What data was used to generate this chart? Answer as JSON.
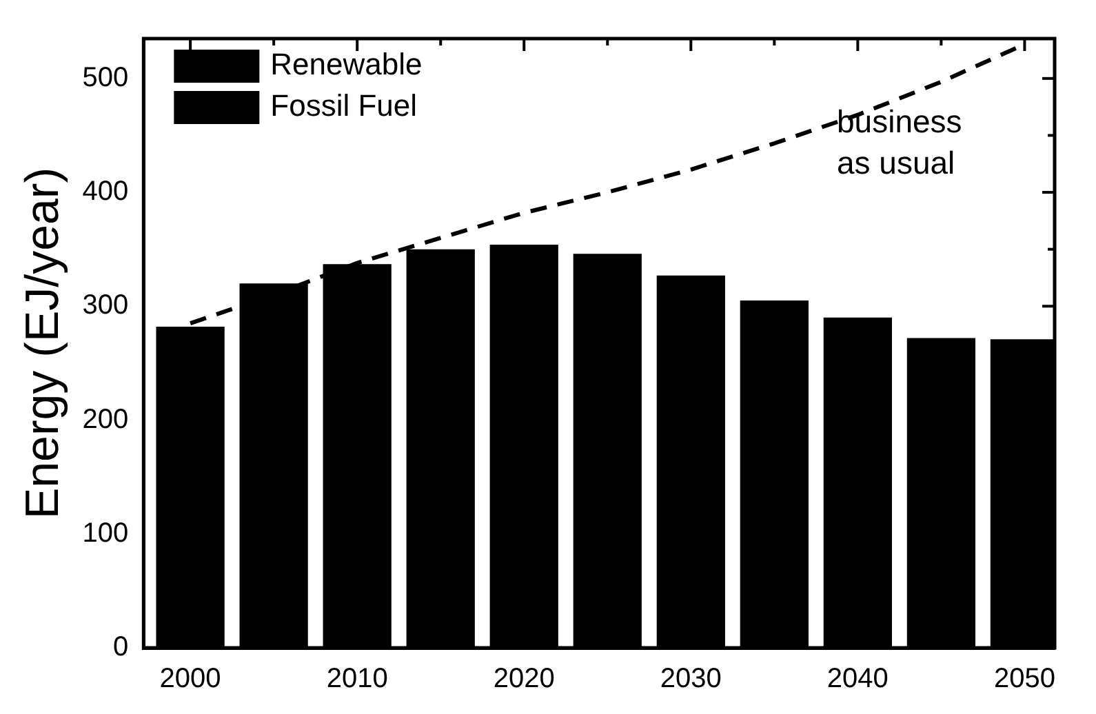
{
  "chart_data": {
    "type": "bar",
    "ylabel": "Energy (EJ/year)",
    "x": [
      2000,
      2005,
      2010,
      2015,
      2020,
      2025,
      2030,
      2035,
      2040,
      2045,
      2050
    ],
    "stacked": true,
    "series": [
      {
        "name": "Renewable",
        "color": "#000000",
        "values": [
          null,
          null,
          null,
          null,
          null,
          null,
          null,
          null,
          null,
          null,
          null
        ]
      },
      {
        "name": "Fossil Fuel",
        "color": "#000000",
        "values": [
          282,
          320,
          337,
          350,
          354,
          346,
          327,
          305,
          290,
          272,
          271
        ]
      },
      {
        "type": "line",
        "color": "#000000",
        "line_style": "dashed",
        "marker": "none",
        "values": [
          285,
          310,
          338,
          360,
          382,
          400,
          420,
          443,
          468,
          497,
          530
        ]
      }
    ],
    "xlim": [
      1997.2,
      2051.8
    ],
    "xticks": [
      2000,
      {
        "value": 2005,
        "label": null
      },
      2010,
      {
        "value": 2015,
        "label": null
      },
      2020,
      {
        "value": 2025,
        "label": null
      },
      2030,
      {
        "value": 2035,
        "label": null
      },
      2040,
      {
        "value": 2045,
        "label": null
      },
      2050
    ],
    "ylim": [
      0,
      535
    ],
    "yticks": [
      0,
      {
        "value": 50,
        "label": null
      },
      100,
      {
        "value": 150,
        "label": null
      },
      200,
      {
        "value": 250,
        "label": null
      },
      300,
      {
        "value": 350,
        "label": null
      },
      400,
      {
        "value": 450,
        "label": null
      },
      500
    ],
    "legend": "top left",
    "annotations": [
      "business as usual"
    ]
  }
}
